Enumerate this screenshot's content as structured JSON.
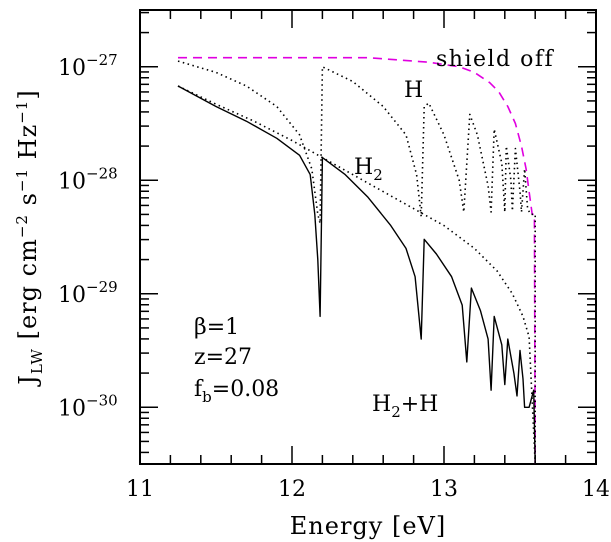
{
  "chart_data": {
    "type": "line",
    "xlabel": "Energy [eV]",
    "ylabel": "J_LW [erg cm^-2 s^-1 Hz^-1]",
    "xlim": [
      11,
      14
    ],
    "ylim_log10": [
      -30.5,
      -26.5
    ],
    "y_scale": "log",
    "x_ticks": [
      "11",
      "12",
      "13",
      "14"
    ],
    "y_ticks": [
      {
        "base": "10",
        "exp": "−27"
      },
      {
        "base": "10",
        "exp": "−28"
      },
      {
        "base": "10",
        "exp": "−29"
      },
      {
        "base": "10",
        "exp": "−30"
      }
    ],
    "grid": false,
    "series": [
      {
        "name": "shield off",
        "style": "dashed",
        "color": "#e000e0",
        "points": [
          [
            11.25,
            -26.92
          ],
          [
            12.5,
            -26.92
          ],
          [
            12.9,
            -26.96
          ],
          [
            13.1,
            -27.0
          ],
          [
            13.2,
            -27.05
          ],
          [
            13.3,
            -27.14
          ],
          [
            13.36,
            -27.22
          ],
          [
            13.42,
            -27.35
          ],
          [
            13.47,
            -27.5
          ],
          [
            13.51,
            -27.7
          ],
          [
            13.54,
            -27.9
          ],
          [
            13.56,
            -28.1
          ],
          [
            13.58,
            -28.3
          ],
          [
            13.595,
            -28.3
          ],
          [
            13.6,
            -30.5
          ]
        ]
      },
      {
        "name": "H",
        "style": "dotted",
        "color": "#000000",
        "points": [
          [
            11.25,
            -26.95
          ],
          [
            11.5,
            -27.05
          ],
          [
            11.7,
            -27.17
          ],
          [
            11.9,
            -27.35
          ],
          [
            12.05,
            -27.6
          ],
          [
            12.13,
            -27.9
          ],
          [
            12.17,
            -28.3
          ],
          [
            12.185,
            -28.38
          ],
          [
            12.2,
            -27.0
          ],
          [
            12.4,
            -27.13
          ],
          [
            12.6,
            -27.35
          ],
          [
            12.75,
            -27.6
          ],
          [
            12.82,
            -27.95
          ],
          [
            12.85,
            -28.32
          ],
          [
            12.87,
            -27.35
          ],
          [
            12.9,
            -27.32
          ],
          [
            13.0,
            -27.6
          ],
          [
            13.1,
            -28.0
          ],
          [
            13.13,
            -28.28
          ],
          [
            13.17,
            -27.42
          ],
          [
            13.22,
            -27.6
          ],
          [
            13.29,
            -28.05
          ],
          [
            13.31,
            -28.28
          ],
          [
            13.33,
            -27.55
          ],
          [
            13.38,
            -27.85
          ],
          [
            13.4,
            -28.28
          ],
          [
            13.41,
            -27.7
          ],
          [
            13.44,
            -28.0
          ],
          [
            13.45,
            -28.27
          ],
          [
            13.47,
            -27.72
          ],
          [
            13.5,
            -28.1
          ],
          [
            13.51,
            -28.28
          ],
          [
            13.53,
            -27.9
          ],
          [
            13.55,
            -28.25
          ],
          [
            13.57,
            -28.3
          ],
          [
            13.6,
            -28.3
          ],
          [
            13.6,
            -30.5
          ]
        ]
      },
      {
        "name": "H_2",
        "style": "dotted",
        "color": "#000000",
        "points": [
          [
            11.25,
            -27.17
          ],
          [
            11.5,
            -27.33
          ],
          [
            11.75,
            -27.48
          ],
          [
            12.0,
            -27.65
          ],
          [
            12.2,
            -27.8
          ],
          [
            12.4,
            -27.95
          ],
          [
            12.6,
            -28.1
          ],
          [
            12.8,
            -28.25
          ],
          [
            13.0,
            -28.4
          ],
          [
            13.2,
            -28.6
          ],
          [
            13.35,
            -28.8
          ],
          [
            13.45,
            -29.0
          ],
          [
            13.52,
            -29.2
          ],
          [
            13.56,
            -29.38
          ],
          [
            13.6,
            -30.5
          ]
        ]
      },
      {
        "name": "H_2+H",
        "style": "solid",
        "color": "#000000",
        "points": [
          [
            11.25,
            -27.17
          ],
          [
            11.5,
            -27.35
          ],
          [
            11.7,
            -27.48
          ],
          [
            11.9,
            -27.63
          ],
          [
            12.05,
            -27.78
          ],
          [
            12.12,
            -27.95
          ],
          [
            12.15,
            -28.3
          ],
          [
            12.17,
            -28.7
          ],
          [
            12.185,
            -29.2
          ],
          [
            12.2,
            -27.8
          ],
          [
            12.35,
            -27.95
          ],
          [
            12.5,
            -28.15
          ],
          [
            12.65,
            -28.4
          ],
          [
            12.75,
            -28.6
          ],
          [
            12.81,
            -28.85
          ],
          [
            12.85,
            -29.4
          ],
          [
            12.87,
            -28.52
          ],
          [
            12.95,
            -28.65
          ],
          [
            13.05,
            -28.85
          ],
          [
            13.12,
            -29.1
          ],
          [
            13.15,
            -29.6
          ],
          [
            13.18,
            -28.95
          ],
          [
            13.24,
            -29.15
          ],
          [
            13.29,
            -29.4
          ],
          [
            13.31,
            -29.85
          ],
          [
            13.33,
            -29.2
          ],
          [
            13.38,
            -29.45
          ],
          [
            13.4,
            -29.8
          ],
          [
            13.42,
            -29.4
          ],
          [
            13.46,
            -29.7
          ],
          [
            13.48,
            -29.9
          ],
          [
            13.5,
            -29.5
          ],
          [
            13.52,
            -29.75
          ],
          [
            13.53,
            -30.0
          ],
          [
            13.56,
            -30.0
          ],
          [
            13.59,
            -29.85
          ],
          [
            13.6,
            -30.5
          ]
        ]
      }
    ],
    "annotations": {
      "shield_off": "shield off",
      "h": "H",
      "h2_base": "H",
      "h2_sub": "2",
      "h2h_base": "H",
      "h2h_sub": "2",
      "h2h_tail": "+H",
      "beta": "β=1",
      "z": "z=27",
      "fb_base": "f",
      "fb_sub": "b",
      "fb_tail": "=0.08"
    }
  }
}
